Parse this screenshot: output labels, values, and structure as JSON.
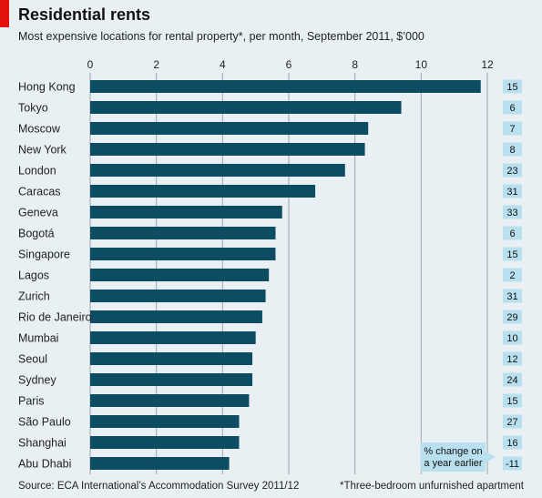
{
  "title": "Residential rents",
  "subtitle": "Most expensive locations for rental property*, per month, September 2011, $’000",
  "source": "Source: ECA International’s Accommodation Survey 2011/12",
  "footnote": "*Three-bedroom unfurnished apartment",
  "colors": {
    "bar": "#0c4d63",
    "badge": "#b8e0ee",
    "accent": "#e3120b",
    "background": "#e9f0f4",
    "grid": "#9aa5ad"
  },
  "chart_data": {
    "type": "bar",
    "orientation": "horizontal",
    "xlim": [
      0,
      12
    ],
    "xticks": [
      0,
      2,
      4,
      6,
      8,
      10,
      12
    ],
    "grid": true,
    "categories": [
      "Hong Kong",
      "Tokyo",
      "Moscow",
      "New York",
      "London",
      "Caracas",
      "Geneva",
      "Bogotá",
      "Singapore",
      "Lagos",
      "Zurich",
      "Rio de Janeiro",
      "Mumbai",
      "Seoul",
      "Sydney",
      "Paris",
      "São Paulo",
      "Shanghai",
      "Abu Dhabi"
    ],
    "values": [
      11.8,
      9.4,
      8.4,
      8.3,
      7.7,
      6.8,
      5.8,
      5.6,
      5.6,
      5.4,
      5.3,
      5.2,
      5.0,
      4.9,
      4.9,
      4.8,
      4.5,
      4.5,
      4.2
    ],
    "change": {
      "label_lines": [
        "% change on",
        "a year earlier"
      ],
      "values": [
        "15",
        "6",
        "7",
        "8",
        "23",
        "31",
        "33",
        "6",
        "15",
        "2",
        "31",
        "29",
        "10",
        "12",
        "24",
        "15",
        "27",
        "16",
        "-11"
      ]
    }
  }
}
